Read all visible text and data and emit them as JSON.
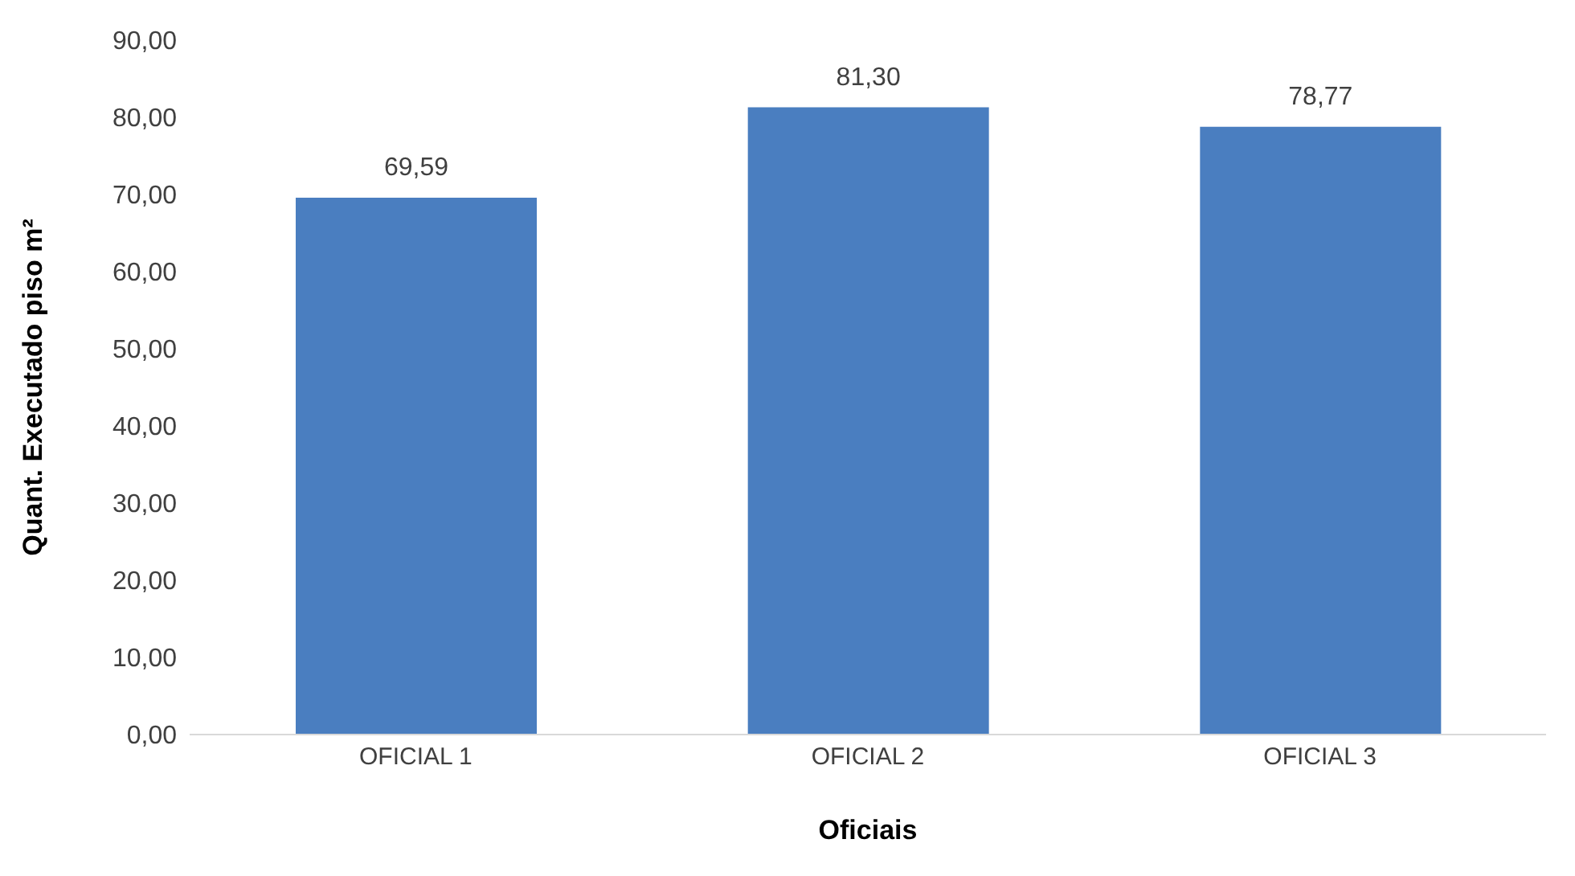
{
  "chart_data": {
    "type": "bar",
    "xlabel": "Oficiais",
    "ylabel": "Quant. Executado piso m²",
    "categories": [
      "OFICIAL 1",
      "OFICIAL 2",
      "OFICIAL 3"
    ],
    "values": [
      69.59,
      81.3,
      78.77
    ],
    "value_labels": [
      "69,59",
      "81,30",
      "78,77"
    ],
    "color": "#4a7ec0",
    "ylim": [
      0,
      90
    ],
    "yticks": [
      {
        "value": 0,
        "label": "0,00"
      },
      {
        "value": 10,
        "label": "10,00"
      },
      {
        "value": 20,
        "label": "20,00"
      },
      {
        "value": 30,
        "label": "30,00"
      },
      {
        "value": 40,
        "label": "40,00"
      },
      {
        "value": 50,
        "label": "50,00"
      },
      {
        "value": 60,
        "label": "60,00"
      },
      {
        "value": 70,
        "label": "70,00"
      },
      {
        "value": 80,
        "label": "80,00"
      },
      {
        "value": 90,
        "label": "90,00"
      }
    ],
    "grid": false,
    "legend": false
  }
}
